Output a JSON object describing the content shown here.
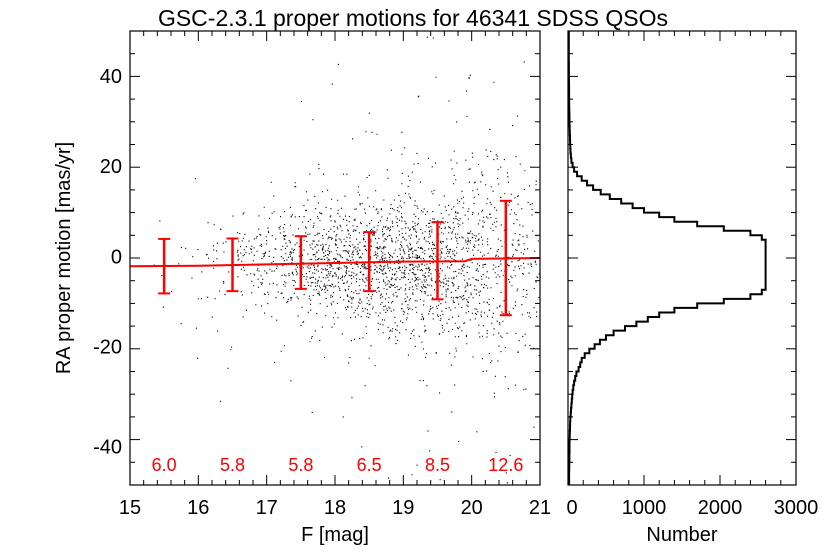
{
  "chart_data": [
    {
      "type": "scatter",
      "title": "GSC-2.3.1 proper motions for 46341 SDSS QSOs",
      "xlabel": "F [mag]",
      "ylabel": "RA proper motion [mas/yr]",
      "xlim": [
        15,
        21
      ],
      "ylim": [
        -50,
        50
      ],
      "xticks": [
        "15",
        "16",
        "17",
        "18",
        "19",
        "20",
        "21"
      ],
      "yticks": [
        "-40",
        "-20",
        "0",
        "20",
        "40"
      ],
      "n_points": 46341,
      "point_color": "#000000",
      "trend_color": "#ff0000",
      "binned_stats": {
        "x": [
          15.5,
          16.5,
          17.5,
          18.5,
          19.5,
          20.5
        ],
        "mean": [
          -1.8,
          -1.5,
          -1.0,
          -0.8,
          -0.6,
          0.0
        ],
        "sigma": [
          6.0,
          5.8,
          5.8,
          6.5,
          8.5,
          12.6
        ],
        "sigma_labels": [
          "6.0",
          "5.8",
          "5.8",
          "6.5",
          "8.5",
          "12.6"
        ]
      },
      "trend_line": {
        "x": [
          15.0,
          16.0,
          17.0,
          18.0,
          19.0,
          19.9,
          20.0,
          21.0
        ],
        "y": [
          -1.8,
          -1.7,
          -1.4,
          -1.1,
          -0.8,
          -0.7,
          -0.2,
          0.0
        ]
      }
    },
    {
      "type": "histogram",
      "orientation": "horizontal",
      "xlabel": "Number",
      "xlim": [
        0,
        3000
      ],
      "ylim": [
        -50,
        50
      ],
      "xticks": [
        "0",
        "1000",
        "2000",
        "3000"
      ],
      "bin_width": 1,
      "bin_centers": [
        -49.5,
        -48.5,
        -47.5,
        -46.5,
        -45.5,
        -44.5,
        -43.5,
        -42.5,
        -41.5,
        -40.5,
        -39.5,
        -38.5,
        -37.5,
        -36.5,
        -35.5,
        -34.5,
        -33.5,
        -32.5,
        -31.5,
        -30.5,
        -29.5,
        -28.5,
        -27.5,
        -26.5,
        -25.5,
        -24.5,
        -23.5,
        -22.5,
        -21.5,
        -20.5,
        -19.5,
        -18.5,
        -17.5,
        -16.5,
        -15.5,
        -14.5,
        -13.5,
        -12.5,
        -11.5,
        -10.5,
        -9.5,
        -8.5,
        -7.5,
        -6.5,
        -5.5,
        -4.5,
        -3.5,
        -2.5,
        -1.5,
        -0.5,
        0.5,
        1.5,
        2.5,
        3.5,
        4.5,
        5.5,
        6.5,
        7.5,
        8.5,
        9.5,
        10.5,
        11.5,
        12.5,
        13.5,
        14.5,
        15.5,
        16.5,
        17.5,
        18.5,
        19.5,
        20.5,
        21.5,
        22.5,
        23.5,
        24.5,
        25.5,
        26.5,
        27.5,
        28.5,
        29.5,
        30.5,
        31.5,
        32.5,
        33.5,
        34.5,
        35.5,
        36.5,
        37.5,
        38.5,
        39.5,
        40.5,
        41.5,
        42.5,
        43.5,
        44.5,
        45.5,
        46.5,
        47.5,
        48.5,
        49.5
      ],
      "counts": [
        15,
        15,
        15,
        16,
        17,
        18,
        18,
        20,
        20,
        20,
        22,
        24,
        26,
        28,
        30,
        35,
        40,
        45,
        50,
        55,
        60,
        70,
        80,
        95,
        110,
        140,
        160,
        180,
        220,
        280,
        350,
        420,
        500,
        600,
        750,
        900,
        1050,
        1200,
        1400,
        1700,
        2050,
        2400,
        2550,
        2600,
        2600,
        2600,
        2600,
        2600,
        2600,
        2600,
        2600,
        2600,
        2600,
        2600,
        2550,
        2400,
        2050,
        1700,
        1400,
        1200,
        1000,
        850,
        700,
        550,
        430,
        330,
        250,
        180,
        120,
        80,
        60,
        45,
        38,
        33,
        30,
        28,
        26,
        24,
        22,
        20,
        20,
        18,
        17,
        16,
        15,
        15,
        14,
        14,
        13,
        13,
        12,
        12,
        12,
        11,
        11,
        10,
        10,
        10,
        10,
        10
      ]
    }
  ]
}
